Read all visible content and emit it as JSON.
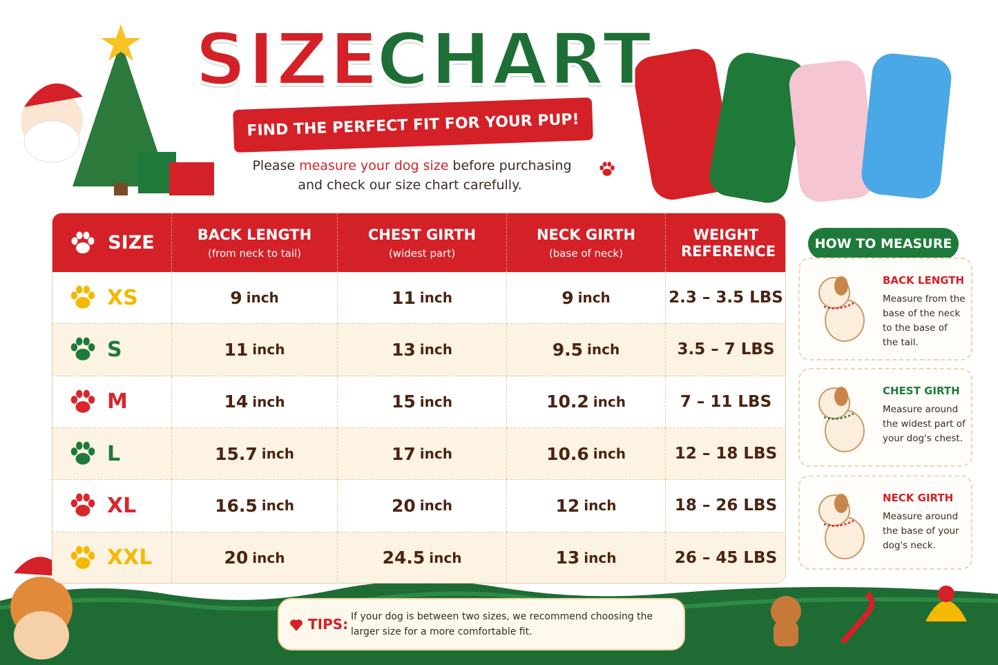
{
  "header": {
    "title_left": "SIZE",
    "title_right": "CHART",
    "ribbon": "FIND THE PERFECT FIT FOR YOUR PUP!",
    "intro": {
      "before": "Please",
      "highlight": "measure your dog size",
      "after": "before purchasing and check our size chart carefully."
    }
  },
  "table": {
    "columns": [
      {
        "title": "SIZE"
      },
      {
        "title": "BACK LENGTH",
        "subtitle": "(from neck to tail)"
      },
      {
        "title": "CHEST GIRTH",
        "subtitle": "(widest part)"
      },
      {
        "title": "NECK GIRTH",
        "subtitle": "(base of neck)"
      },
      {
        "title": "WEIGHT REFERENCE"
      }
    ],
    "paw_colors": [
      "#f5b800",
      "#1e7a3a",
      "#d9252b",
      "#1e7a3a",
      "#d9252b",
      "#f5b800"
    ],
    "rows": [
      [
        "XS",
        {
          "value": "9",
          "unit": "inch"
        },
        {
          "value": "11",
          "unit": "inch"
        },
        {
          "value": "9",
          "unit": "inch"
        },
        "2.3 – 3.5 LBS"
      ],
      [
        "S",
        {
          "value": "11",
          "unit": "inch"
        },
        {
          "value": "13",
          "unit": "inch"
        },
        {
          "value": "9.5",
          "unit": "inch"
        },
        "3.5 – 7 LBS"
      ],
      [
        "M",
        {
          "value": "14",
          "unit": "inch"
        },
        {
          "value": "15",
          "unit": "inch"
        },
        {
          "value": "10.2",
          "unit": "inch"
        },
        "7 – 11 LBS"
      ],
      [
        "L",
        {
          "value": "15.7",
          "unit": "inch"
        },
        {
          "value": "17",
          "unit": "inch"
        },
        {
          "value": "10.6",
          "unit": "inch"
        },
        "12 – 18 LBS"
      ],
      [
        "XL",
        {
          "value": "16.5",
          "unit": "inch"
        },
        {
          "value": "20",
          "unit": "inch"
        },
        {
          "value": "12",
          "unit": "inch"
        },
        "18 – 26 LBS"
      ],
      [
        "XXL",
        {
          "value": "20",
          "unit": "inch"
        },
        {
          "value": "24.5",
          "unit": "inch"
        },
        {
          "value": "13",
          "unit": "inch"
        },
        "26 – 45 LBS"
      ]
    ]
  },
  "how_to_measure": {
    "title": "HOW TO MEASURE",
    "items": [
      {
        "title": "BACK LENGTH",
        "text": "Measure from the base of the neck to the base of the tail.",
        "color": "#d42027"
      },
      {
        "title": "CHEST GIRTH",
        "text": "Measure around the widest part of your dog's chest.",
        "color": "#1e7a3a"
      },
      {
        "title": "NECK GIRTH",
        "text": "Measure around the base of your dog's neck.",
        "color": "#d42027"
      }
    ]
  },
  "tips": {
    "label": "TIPS:",
    "text": "If your dog is between two sizes, we recommend choosing the larger size for a more comfortable fit."
  }
}
